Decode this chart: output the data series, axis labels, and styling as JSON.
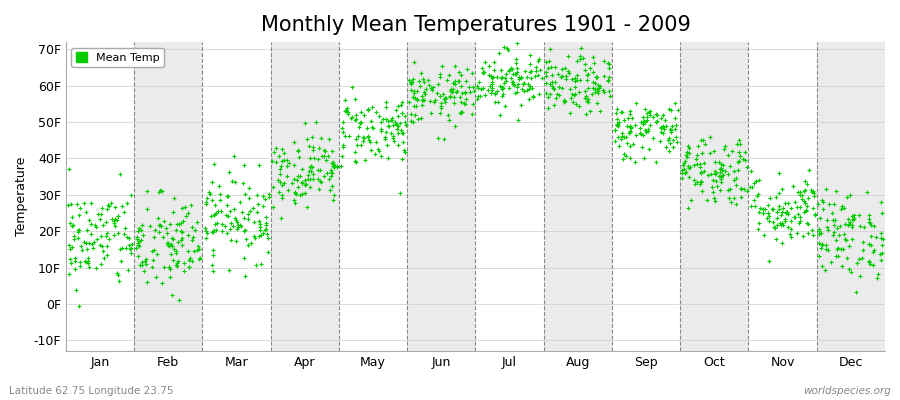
{
  "title": "Monthly Mean Temperatures 1901 - 2009",
  "ylabel": "Temperature",
  "xlabel_labels": [
    "Jan",
    "Feb",
    "Mar",
    "Apr",
    "May",
    "Jun",
    "Jul",
    "Aug",
    "Sep",
    "Oct",
    "Nov",
    "Dec"
  ],
  "ytick_labels": [
    "-10F",
    "0F",
    "10F",
    "20F",
    "30F",
    "40F",
    "50F",
    "60F",
    "70F"
  ],
  "ytick_values": [
    -10,
    0,
    10,
    20,
    30,
    40,
    50,
    60,
    70
  ],
  "ylim": [
    -13,
    72
  ],
  "dot_color": "#00cc00",
  "dot_size": 5,
  "background_color": "#ffffff",
  "band_color_odd": "#ebebeb",
  "band_color_even": "#f5f5f5",
  "title_fontsize": 15,
  "axis_fontsize": 9,
  "legend_label": "Mean Temp",
  "footer_left": "Latitude 62.75 Longitude 23.75",
  "footer_right": "worldspecies.org",
  "n_years": 109,
  "month_centers": [
    1,
    2,
    3,
    4,
    5,
    6,
    7,
    8,
    9,
    10,
    11,
    12
  ],
  "month_means_F": [
    18,
    16,
    24,
    37,
    48,
    57,
    62,
    60,
    48,
    37,
    26,
    19
  ],
  "month_spreads_F": [
    7,
    7,
    6,
    5,
    5,
    4,
    4,
    4,
    4,
    5,
    5,
    6
  ]
}
